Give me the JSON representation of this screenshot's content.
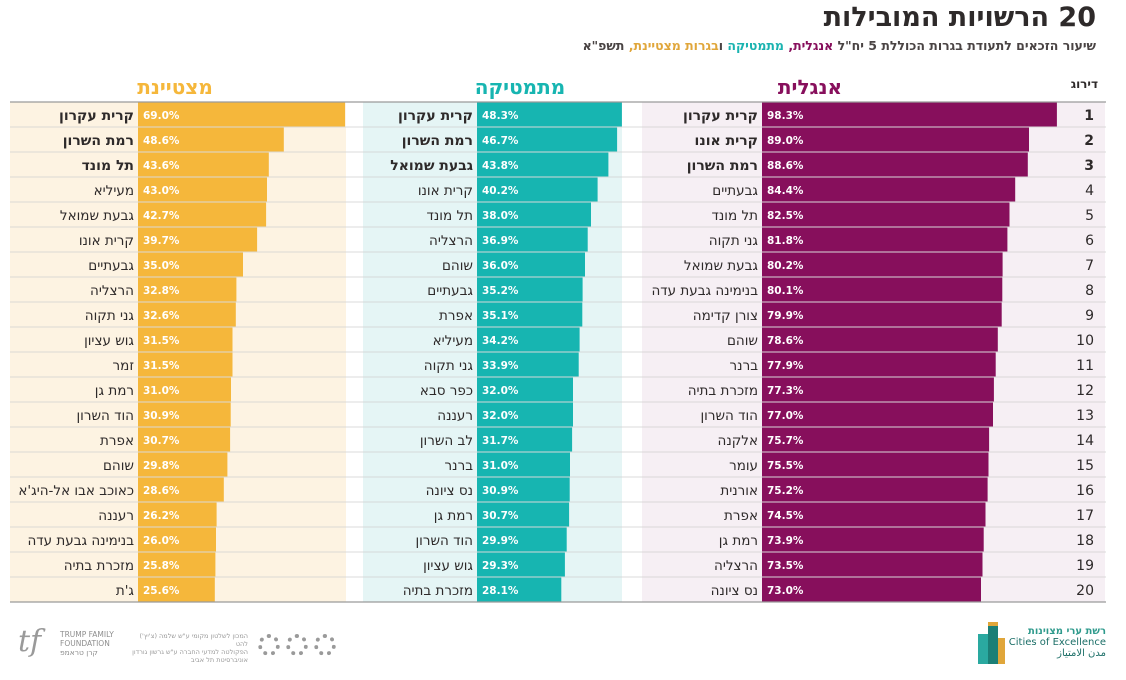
{
  "header": {
    "title": "20 הרשויות המובילות",
    "subtitle_intro": "שיעור הזכאים לתעודת בגרות הכוללת 5 יח\"ל",
    "subtitle_english": "אנגלית,",
    "subtitle_math": "מתמטיקה",
    "subtitle_join": "ו",
    "subtitle_excellence": "בגרות מצטיינת,",
    "subtitle_year": "תשפ\"א"
  },
  "chart_data": {
    "type": "bar",
    "rank_header": "דירוג",
    "ranks": [
      "1",
      "2",
      "3",
      "4",
      "5",
      "6",
      "7",
      "8",
      "9",
      "10",
      "11",
      "12",
      "13",
      "14",
      "15",
      "16",
      "17",
      "18",
      "19",
      "20"
    ],
    "series": [
      {
        "name": "אנגלית",
        "color": "#870f5c",
        "band_color": "#f6eff4",
        "labels": [
          "קרית עקרון",
          "קרית אונו",
          "רמת השרון",
          "גבעתיים",
          "תל מונד",
          "גני תקוה",
          "גבעת שמואל",
          "בנימינה גבעת עדה",
          "צורן קדימה",
          "שוהם",
          "ברנר",
          "מזכרת בתיה",
          "הוד השרון",
          "אלקנה",
          "עומר",
          "אורנית",
          "אפרת",
          "רמת גן",
          "הרצליה",
          "נס ציונה"
        ],
        "values": [
          98.3,
          89.0,
          88.6,
          84.4,
          82.5,
          81.8,
          80.2,
          80.1,
          79.9,
          78.6,
          77.9,
          77.3,
          77.0,
          75.7,
          75.5,
          75.2,
          74.5,
          73.9,
          73.5,
          73.0
        ],
        "value_labels": [
          "98.3%",
          "89.0%",
          "88.6%",
          "84.4%",
          "82.5%",
          "81.8%",
          "80.2%",
          "80.1%",
          "79.9%",
          "78.6%",
          "77.9%",
          "77.3%",
          "77.0%",
          "75.7%",
          "75.5%",
          "75.2%",
          "74.5%",
          "73.9%",
          "73.5%",
          "73.0%"
        ]
      },
      {
        "name": "מתמטיקה",
        "color": "#17b5b1",
        "band_color": "#e5f5f5",
        "labels": [
          "קרית עקרון",
          "רמת השרון",
          "גבעת שמואל",
          "קרית אונו",
          "תל מונד",
          "הרצליה",
          "שוהם",
          "גבעתיים",
          "אפרת",
          "מעיליא",
          "גני תקוה",
          "כפר סבא",
          "רעננה",
          "לב השרון",
          "ברנר",
          "נס ציונה",
          "רמת גן",
          "הוד השרון",
          "גוש עציון",
          "מזכרת בתיה"
        ],
        "values": [
          48.3,
          46.7,
          43.8,
          40.2,
          38.0,
          36.9,
          36.0,
          35.2,
          35.1,
          34.2,
          33.9,
          32.0,
          32.0,
          31.7,
          31.0,
          30.9,
          30.7,
          29.9,
          29.3,
          28.1
        ],
        "value_labels": [
          "48.3%",
          "46.7%",
          "43.8%",
          "40.2%",
          "38.0%",
          "36.9%",
          "36.0%",
          "35.2%",
          "35.1%",
          "34.2%",
          "33.9%",
          "32.0%",
          "32.0%",
          "31.7%",
          "31.0%",
          "30.9%",
          "30.7%",
          "29.9%",
          "29.3%",
          "28.1%"
        ]
      },
      {
        "name": "מצטיינת",
        "color": "#f5b73b",
        "band_color": "#fdf3e2",
        "labels": [
          "קרית עקרון",
          "רמת השרון",
          "תל מונד",
          "מעיליא",
          "גבעת שמואל",
          "קרית אונו",
          "גבעתיים",
          "הרצליה",
          "גני תקוה",
          "גוש עציון",
          "זמר",
          "רמת גן",
          "הוד השרון",
          "אפרת",
          "שוהם",
          "כאוכב אבו אל-היג'א",
          "רעננה",
          "בנימינה גבעת עדה",
          "מזכרת בתיה",
          "ג'ת"
        ],
        "values": [
          69.0,
          48.6,
          43.6,
          43.0,
          42.7,
          39.7,
          35.0,
          32.8,
          32.6,
          31.5,
          31.5,
          31.0,
          30.9,
          30.7,
          29.8,
          28.6,
          26.2,
          26.0,
          25.8,
          25.6
        ],
        "value_labels": [
          "69.0%",
          "48.6%",
          "43.6%",
          "43.0%",
          "42.7%",
          "39.7%",
          "35.0%",
          "32.8%",
          "32.6%",
          "31.5%",
          "31.5%",
          "31.0%",
          "30.9%",
          "30.7%",
          "29.8%",
          "28.6%",
          "26.2%",
          "26.0%",
          "25.8%",
          "25.6%"
        ]
      }
    ]
  },
  "footer": {
    "trump_line1": "TRUMP FAMILY",
    "trump_line2": "FOUNDATION",
    "trump_line3": "קרן טראמפ",
    "institute_line1": "המכון לשלטון מקומי ע\"ש שלמה (צ'יץ') להט",
    "institute_line2": "הפקולטה למדעי החברה ע\"ש גרשון גורדון",
    "institute_line3": "אוניברסיטת תל אביב",
    "coe_line1": "רשת ערי מצוינות",
    "coe_line2": "Cities of Excellence",
    "coe_line3": "مدن الامتياز"
  }
}
